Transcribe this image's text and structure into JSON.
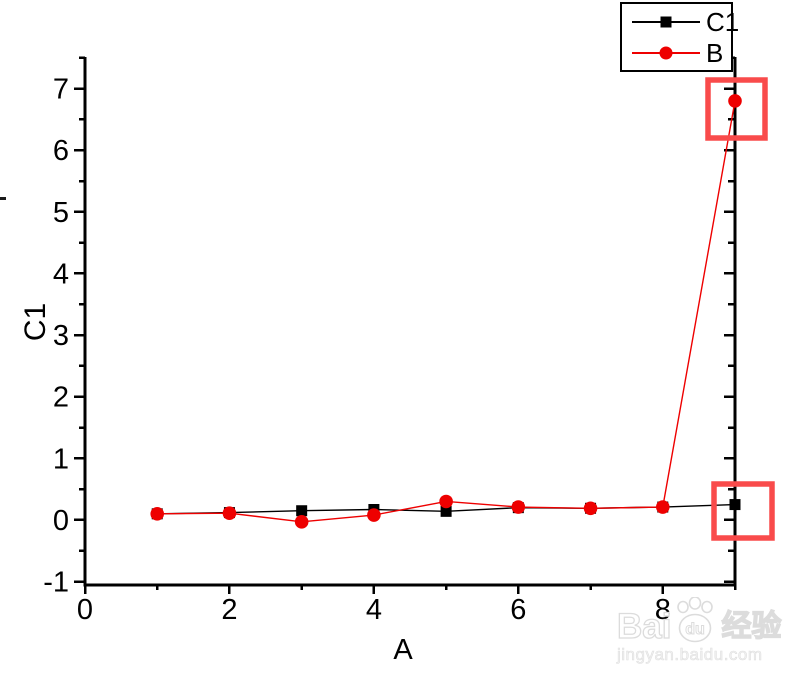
{
  "page": {
    "background": "#ffffff"
  },
  "chart_data": {
    "type": "line",
    "title": "",
    "xlabel": "A",
    "ylabel": "C1",
    "x": [
      1,
      2,
      3,
      4,
      5,
      6,
      7,
      8,
      9
    ],
    "series": [
      {
        "name": "C1",
        "color": "#000000",
        "marker": "square",
        "values": [
          0.1,
          0.12,
          0.15,
          0.17,
          0.14,
          0.2,
          0.19,
          0.21,
          0.25
        ]
      },
      {
        "name": "B",
        "color": "#ee0000",
        "marker": "circle",
        "values": [
          0.1,
          0.11,
          -0.03,
          0.08,
          0.3,
          0.21,
          0.19,
          0.21,
          6.8
        ]
      }
    ],
    "xlim": [
      0,
      9
    ],
    "ylim": [
      -1.055,
      7.512
    ],
    "x_major_ticks": [
      0,
      2,
      4,
      6,
      8
    ],
    "x_minor_ticks": [
      1,
      3,
      5,
      7,
      9
    ],
    "y_major_ticks": [
      -1,
      0,
      1,
      2,
      3,
      4,
      5,
      6,
      7
    ],
    "y_minor_ticks": [
      -0.5,
      0.5,
      1.5,
      2.5,
      3.5,
      4.5,
      5.5,
      6.5,
      7.5
    ],
    "grid": false,
    "legend": {
      "position": "top-right",
      "entries": [
        "C1",
        "B"
      ]
    },
    "highlight_color": "#f94b4b",
    "highlights": [
      {
        "shape": "rect",
        "around_point": {
          "series": "B",
          "x": 9,
          "y": 6.8
        },
        "px": {
          "x": 708,
          "y": 80,
          "w": 57,
          "h": 58
        }
      },
      {
        "shape": "rect",
        "around_point": {
          "series": "C1",
          "x": 9,
          "y": 0.25
        },
        "px": {
          "x": 714,
          "y": 484,
          "w": 58,
          "h": 54
        }
      }
    ]
  },
  "watermark": {
    "brand_left": "Bai",
    "brand_paw_text": "du",
    "brand_right": "经验",
    "url": "jingyan.baidu.com",
    "color": "#dcdcdc"
  }
}
